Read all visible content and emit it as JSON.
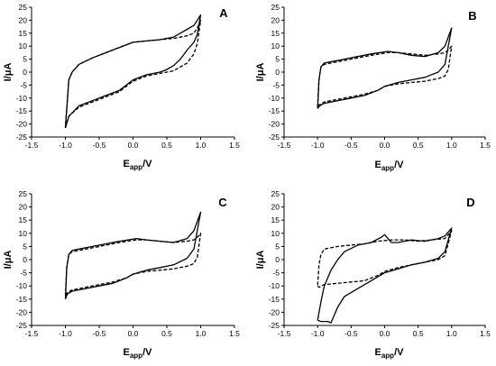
{
  "chart_data": [
    {
      "type": "line",
      "panel_label": "A",
      "xlabel_main": "E",
      "xlabel_sub": "app",
      "xlabel_tail": "/V",
      "ylabel_main": "I/",
      "ylabel_mu": "μ",
      "ylabel_tail": "A",
      "xlim": [
        -1.5,
        1.5
      ],
      "ylim": [
        -25,
        25
      ],
      "xticks": [
        "-1.5",
        "-1.0",
        "-0.5",
        "0.0",
        "0.5",
        "1.0",
        "1.5"
      ],
      "yticks": [
        "-25",
        "-20",
        "-15",
        "-10",
        "-5",
        "0",
        "5",
        "10",
        "15",
        "20",
        "25"
      ],
      "grid": false,
      "series": [
        {
          "style": "solid",
          "x": [
            -1.0,
            -0.95,
            -0.8,
            -0.6,
            -0.4,
            -0.2,
            -0.1,
            0.0,
            0.2,
            0.4,
            0.5,
            0.6,
            0.7,
            0.8,
            0.9,
            0.95,
            1.0,
            1.0,
            0.95,
            0.9,
            0.8,
            0.7,
            0.6,
            0.4,
            0.2,
            0.0,
            -0.2,
            -0.4,
            -0.6,
            -0.8,
            -0.9,
            -0.95,
            -1.0
          ],
          "y": [
            -21.5,
            -17,
            -13,
            -11,
            -9,
            -7,
            -5,
            -3,
            -1,
            0,
            1,
            2.5,
            5,
            8.5,
            11.5,
            14.5,
            22,
            22,
            20,
            18,
            16.5,
            15,
            13.5,
            12.5,
            12,
            11.5,
            9.5,
            7.5,
            5.5,
            3,
            0,
            -3,
            -21.5
          ]
        },
        {
          "style": "dashed",
          "x": [
            -1.0,
            -0.95,
            -0.8,
            -0.6,
            -0.4,
            -0.2,
            -0.1,
            0.0,
            0.2,
            0.4,
            0.6,
            0.8,
            0.9,
            0.95,
            1.0,
            1.0,
            0.95,
            0.9,
            0.8,
            0.6,
            0.4,
            0.2,
            0.0,
            -0.2,
            -0.4,
            -0.6,
            -0.8,
            -0.9,
            -0.95,
            -1.0
          ],
          "y": [
            -21.5,
            -17,
            -13.5,
            -11.5,
            -9.5,
            -7.5,
            -5.5,
            -3.5,
            -1.5,
            -0.5,
            0.5,
            3.5,
            7,
            11,
            20,
            20,
            17,
            15,
            14,
            13,
            12.5,
            12,
            11.5,
            9.5,
            7.5,
            5.5,
            3,
            0,
            -3,
            -21.5
          ]
        }
      ]
    },
    {
      "type": "line",
      "panel_label": "B",
      "xlabel_main": "E",
      "xlabel_sub": "app",
      "xlabel_tail": "/V",
      "ylabel_main": "I/",
      "ylabel_mu": "μ",
      "ylabel_tail": "A",
      "xlim": [
        -1.5,
        1.5
      ],
      "ylim": [
        -25,
        25
      ],
      "xticks": [
        "-1.5",
        "-1.0",
        "-0.5",
        "0.0",
        "0.5",
        "1.0",
        "1.5"
      ],
      "yticks": [
        "-25",
        "-20",
        "-15",
        "-10",
        "-5",
        "0",
        "5",
        "10",
        "15",
        "20",
        "25"
      ],
      "grid": false,
      "series": [
        {
          "style": "solid",
          "x": [
            -1.0,
            -0.97,
            -0.9,
            -0.7,
            -0.5,
            -0.3,
            -0.1,
            0.0,
            0.2,
            0.4,
            0.6,
            0.8,
            0.9,
            1.0,
            1.0,
            0.9,
            0.8,
            0.6,
            0.4,
            0.2,
            0.05,
            -0.2,
            -0.4,
            -0.6,
            -0.8,
            -0.9,
            -0.95,
            -0.98,
            -1.0
          ],
          "y": [
            -14,
            -13,
            -12,
            -11,
            -10,
            -9,
            -7,
            -5.5,
            -4,
            -3,
            -2,
            0,
            3,
            17,
            17,
            10,
            7.5,
            6,
            6.5,
            7.5,
            8,
            7,
            6,
            5,
            4,
            3.5,
            2,
            -3,
            -14
          ]
        },
        {
          "style": "dashed",
          "x": [
            -1.0,
            -0.97,
            -0.9,
            -0.7,
            -0.5,
            -0.3,
            -0.1,
            0.0,
            0.2,
            0.4,
            0.6,
            0.8,
            0.9,
            0.95,
            1.0,
            1.0,
            0.95,
            0.9,
            0.8,
            0.6,
            0.4,
            0.2,
            0.05,
            -0.2,
            -0.4,
            -0.6,
            -0.8,
            -0.9,
            -0.95,
            -0.98,
            -1.0
          ],
          "y": [
            -13,
            -12.5,
            -11.5,
            -10.5,
            -9.5,
            -8.5,
            -7,
            -5.5,
            -4.5,
            -4,
            -3.5,
            -2.5,
            -1.5,
            1,
            10,
            10,
            8.5,
            7.5,
            7,
            6.5,
            7,
            7.5,
            7.5,
            6.5,
            5.5,
            4.5,
            3.5,
            3,
            2,
            -3,
            -13
          ]
        }
      ]
    },
    {
      "type": "line",
      "panel_label": "C",
      "xlabel_main": "E",
      "xlabel_sub": "app",
      "xlabel_tail": "/V",
      "ylabel_main": "I/",
      "ylabel_mu": "μ",
      "ylabel_tail": "A",
      "xlim": [
        -1.5,
        1.5
      ],
      "ylim": [
        -25,
        25
      ],
      "xticks": [
        "-1.5",
        "-1.0",
        "-0.5",
        "0.0",
        "0.5",
        "1.0",
        "1.5"
      ],
      "yticks": [
        "-25",
        "-20",
        "-15",
        "-10",
        "-5",
        "0",
        "5",
        "10",
        "15",
        "20",
        "25"
      ],
      "grid": false,
      "series": [
        {
          "style": "solid",
          "x": [
            -1.0,
            -0.97,
            -0.9,
            -0.7,
            -0.5,
            -0.3,
            -0.1,
            0.0,
            0.2,
            0.4,
            0.6,
            0.8,
            0.9,
            1.0,
            1.0,
            0.9,
            0.8,
            0.6,
            0.4,
            0.2,
            0.05,
            -0.2,
            -0.4,
            -0.6,
            -0.8,
            -0.9,
            -0.95,
            -0.98,
            -1.0
          ],
          "y": [
            -15,
            -13,
            -12,
            -11,
            -10,
            -9,
            -7,
            -5.5,
            -4,
            -3,
            -2,
            0.5,
            4,
            18,
            18,
            11,
            8,
            6.5,
            7,
            7.5,
            8,
            7,
            6,
            5,
            4,
            3.5,
            2,
            -3,
            -15
          ]
        },
        {
          "style": "dashed",
          "x": [
            -1.0,
            -0.97,
            -0.9,
            -0.7,
            -0.5,
            -0.3,
            -0.1,
            0.0,
            0.2,
            0.4,
            0.6,
            0.8,
            0.9,
            0.95,
            1.0,
            1.0,
            0.95,
            0.9,
            0.8,
            0.6,
            0.4,
            0.2,
            0.05,
            -0.2,
            -0.4,
            -0.6,
            -0.8,
            -0.9,
            -0.95,
            -0.98,
            -1.0
          ],
          "y": [
            -13.5,
            -12.5,
            -11.5,
            -10.5,
            -9.5,
            -8.5,
            -7,
            -5.5,
            -4.5,
            -4,
            -3.5,
            -2.5,
            -1.5,
            1,
            10,
            10,
            8.5,
            7.5,
            7,
            6.5,
            7,
            7.5,
            7.5,
            6.5,
            5.5,
            4.5,
            3.5,
            3,
            2,
            -3,
            -13.5
          ]
        }
      ]
    },
    {
      "type": "line",
      "panel_label": "D",
      "xlabel_main": "E",
      "xlabel_sub": "app",
      "xlabel_tail": "/V",
      "ylabel_main": "I/",
      "ylabel_mu": "μ",
      "ylabel_tail": "A",
      "xlim": [
        -1.5,
        1.5
      ],
      "ylim": [
        -25,
        25
      ],
      "xticks": [
        "-1.5",
        "-1.0",
        "-0.5",
        "0.0",
        "0.5",
        "1.0",
        "1.5"
      ],
      "yticks": [
        "-25",
        "-20",
        "-15",
        "-10",
        "-5",
        "0",
        "5",
        "10",
        "15",
        "20",
        "25"
      ],
      "grid": false,
      "series": [
        {
          "style": "solid",
          "x": [
            -1.0,
            -0.95,
            -0.85,
            -0.8,
            -0.7,
            -0.6,
            -0.4,
            -0.2,
            0.0,
            0.2,
            0.4,
            0.6,
            0.8,
            0.9,
            1.0,
            1.0,
            0.9,
            0.8,
            0.6,
            0.4,
            0.2,
            0.1,
            0.0,
            -0.05,
            -0.2,
            -0.4,
            -0.6,
            -0.7,
            -0.8,
            -0.9,
            -0.95,
            -1.0
          ],
          "y": [
            -23,
            -23.5,
            -23.5,
            -24,
            -18,
            -14,
            -11,
            -8,
            -5,
            -3.5,
            -2,
            -1,
            0.5,
            3,
            12,
            12,
            9,
            8,
            7,
            7.5,
            6.5,
            6.5,
            9.5,
            8.5,
            6.5,
            5.5,
            3,
            0,
            -4,
            -10,
            -16,
            -23
          ]
        },
        {
          "style": "dashed",
          "x": [
            -1.0,
            -0.98,
            -0.9,
            -0.7,
            -0.5,
            -0.3,
            -0.1,
            0.0,
            0.2,
            0.4,
            0.6,
            0.8,
            0.9,
            1.0,
            1.0,
            0.9,
            0.7,
            0.5,
            0.3,
            0.1,
            -0.1,
            -0.3,
            -0.5,
            -0.7,
            -0.9,
            -0.95,
            -0.98,
            -1.0
          ],
          "y": [
            -10,
            -10.5,
            -9.5,
            -9,
            -8.5,
            -8,
            -6,
            -4.5,
            -3,
            -2,
            -1,
            0,
            1.5,
            11,
            11,
            8,
            7.5,
            7,
            7.5,
            7.5,
            7,
            6,
            5.5,
            5,
            4,
            2,
            -2,
            -10
          ]
        }
      ]
    }
  ]
}
